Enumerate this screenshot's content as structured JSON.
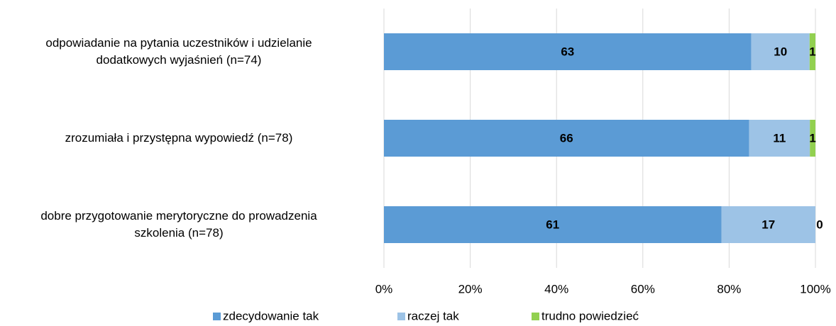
{
  "chart_data": {
    "type": "bar",
    "orientation": "horizontal",
    "stacking": "percent",
    "categories": [
      "odpowiadanie na pytania uczestników i udzielanie\ndodatkowych wyjaśnień (n=74)",
      "zrozumiała i przystępna wypowiedź (n=78)",
      "dobre przygotowanie merytoryczne do prowadzenia\nszkolenia (n=78)"
    ],
    "series": [
      {
        "name": "zdecydowanie tak",
        "color": "#5b9bd5",
        "values": [
          63,
          66,
          61
        ]
      },
      {
        "name": "raczej tak",
        "color": "#9dc3e6",
        "values": [
          10,
          11,
          17
        ]
      },
      {
        "name": "trudno powiedzieć",
        "color": "#92d050",
        "values": [
          1,
          1,
          0
        ]
      }
    ],
    "xlim": [
      0,
      100
    ],
    "xticks": [
      {
        "value": 0,
        "label": "0%"
      },
      {
        "value": 20,
        "label": "20%"
      },
      {
        "value": 40,
        "label": "40%"
      },
      {
        "value": 60,
        "label": "60%"
      },
      {
        "value": 80,
        "label": "80%"
      },
      {
        "value": 100,
        "label": "100%"
      }
    ],
    "grid": true,
    "legend": "bottom"
  }
}
